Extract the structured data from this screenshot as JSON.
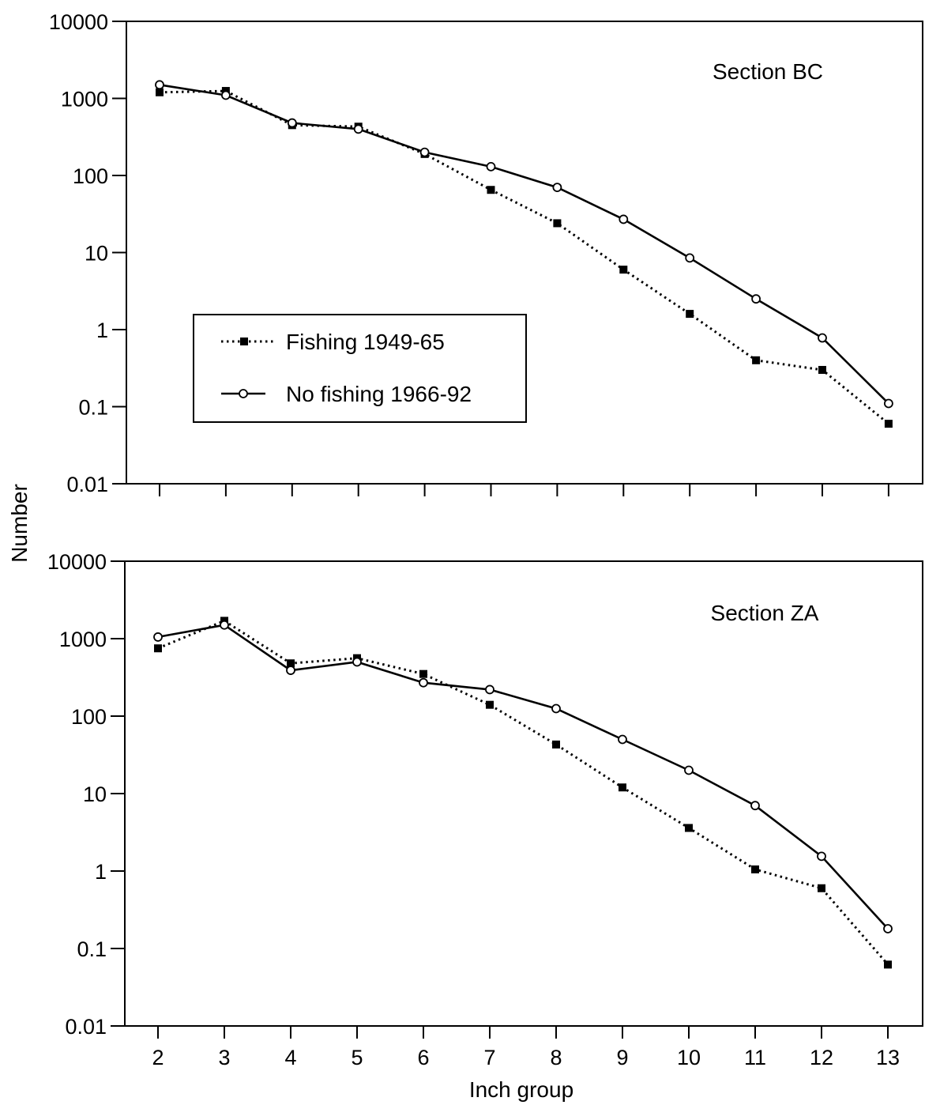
{
  "chart_data": [
    {
      "type": "line",
      "title": "Section BC",
      "ylabel": "Number",
      "yscale": "log",
      "ylim": [
        0.01,
        10000
      ],
      "yticks": [
        "10000",
        "1000",
        "100",
        "10",
        "1",
        "0.1",
        "0.01"
      ],
      "x": [
        2,
        3,
        4,
        5,
        6,
        7,
        8,
        9,
        10,
        11,
        12,
        13
      ],
      "series": [
        {
          "name": "Fishing 1949-65",
          "style": "dotted",
          "marker": "filled-square",
          "values": [
            1200,
            1250,
            450,
            430,
            190,
            65,
            24,
            6,
            1.6,
            0.4,
            0.3,
            0.06
          ]
        },
        {
          "name": "No fishing 1966-92",
          "style": "solid",
          "marker": "open-circle",
          "values": [
            1500,
            1100,
            480,
            400,
            200,
            130,
            70,
            27,
            8.5,
            2.5,
            0.78,
            0.11
          ]
        }
      ],
      "legend_position": "left"
    },
    {
      "type": "line",
      "title": "Section ZA",
      "xlabel": "Inch group",
      "yscale": "log",
      "ylim": [
        0.01,
        10000
      ],
      "yticks": [
        "10000",
        "1000",
        "100",
        "10",
        "1",
        "0.1",
        "0.01"
      ],
      "x": [
        2,
        3,
        4,
        5,
        6,
        7,
        8,
        9,
        10,
        11,
        12,
        13
      ],
      "xticks": [
        "2",
        "3",
        "4",
        "5",
        "6",
        "7",
        "8",
        "9",
        "10",
        "11",
        "12",
        "13"
      ],
      "series": [
        {
          "style": "dotted",
          "marker": "filled-square",
          "values": [
            750,
            1700,
            480,
            560,
            350,
            140,
            43,
            12,
            3.6,
            1.05,
            0.6,
            0.062
          ]
        },
        {
          "style": "solid",
          "marker": "open-circle",
          "values": [
            1050,
            1500,
            390,
            500,
            270,
            220,
            125,
            50,
            20,
            7,
            1.55,
            0.18
          ]
        }
      ]
    }
  ]
}
